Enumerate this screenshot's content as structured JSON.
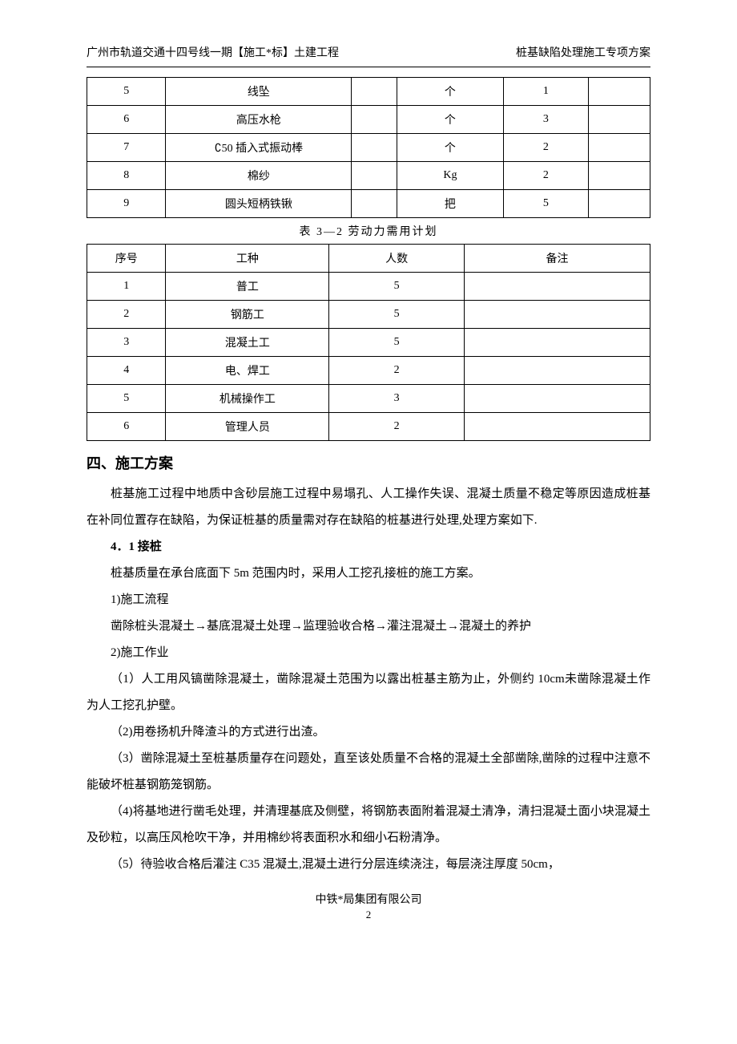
{
  "header": {
    "left": "广州市轨道交通十四号线一期【施工*标】土建工程",
    "right": "桩基缺陷处理施工专项方案"
  },
  "table1": {
    "col_widths": [
      "14%",
      "33%",
      "8%",
      "19%",
      "15%",
      "11%"
    ],
    "rows": [
      [
        "5",
        "线坠",
        "",
        "个",
        "1",
        ""
      ],
      [
        "6",
        "高压水枪",
        "",
        "个",
        "3",
        ""
      ],
      [
        "7",
        "∁50 插入式振动棒",
        "",
        "个",
        "2",
        ""
      ],
      [
        "8",
        "棉纱",
        "",
        "Kg",
        "2",
        ""
      ],
      [
        "9",
        "圆头短柄铁锹",
        "",
        "把",
        "5",
        ""
      ]
    ]
  },
  "table2": {
    "caption": "表 3—2    劳动力需用计划",
    "col_widths": [
      "14%",
      "29%",
      "24%",
      "33%"
    ],
    "headers": [
      "序号",
      "工种",
      "人数",
      "备注"
    ],
    "rows": [
      [
        "1",
        "普工",
        "5",
        ""
      ],
      [
        "2",
        "钢筋工",
        "5",
        ""
      ],
      [
        "3",
        "混凝土工",
        "5",
        ""
      ],
      [
        "4",
        "电、焊工",
        "2",
        ""
      ],
      [
        "5",
        "机械操作工",
        "3",
        ""
      ],
      [
        "6",
        "管理人员",
        "2",
        ""
      ]
    ]
  },
  "section": {
    "heading": "四、施工方案",
    "para1": "桩基施工过程中地质中含砂层施工过程中易塌孔、人工操作失误、混凝土质量不稳定等原因造成桩基在补同位置存在缺陷，为保证桩基的质量需对存在缺陷的桩基进行处理,处理方案如下.",
    "sub1": "4．1 接桩",
    "line1": "桩基质量在承台底面下 5m 范围内时，采用人工挖孔接桩的施工方案。",
    "line2": "1)施工流程",
    "line3": "凿除桩头混凝土→基底混凝土处理→监理验收合格→灌注混凝土→混凝土的养护",
    "line4": "2)施工作业",
    "p1": "（1）人工用风镐凿除混凝土，凿除混凝土范围为以露出桩基主筋为止，外侧约 10cm未凿除混凝土作为人工挖孔护壁。",
    "p2": "（2)用卷扬机升降渣斗的方式进行出渣。",
    "p3": "（3）凿除混凝土至桩基质量存在问题处，直至该处质量不合格的混凝土全部凿除,凿除的过程中注意不能破坏桩基钢筋笼钢筋。",
    "p4": "（4)将基地进行凿毛处理，并清理基底及侧壁，将钢筋表面附着混凝土清净，清扫混凝土面小块混凝土及砂粒，以高压风枪吹干净，并用棉纱将表面积水和细小石粉清净。",
    "p5": "（5）待验收合格后灌注 C35 混凝土,混凝土进行分层连续浇注，每层浇注厚度 50cm，"
  },
  "footer": {
    "company": "中铁*局集团有限公司",
    "page": "2"
  }
}
